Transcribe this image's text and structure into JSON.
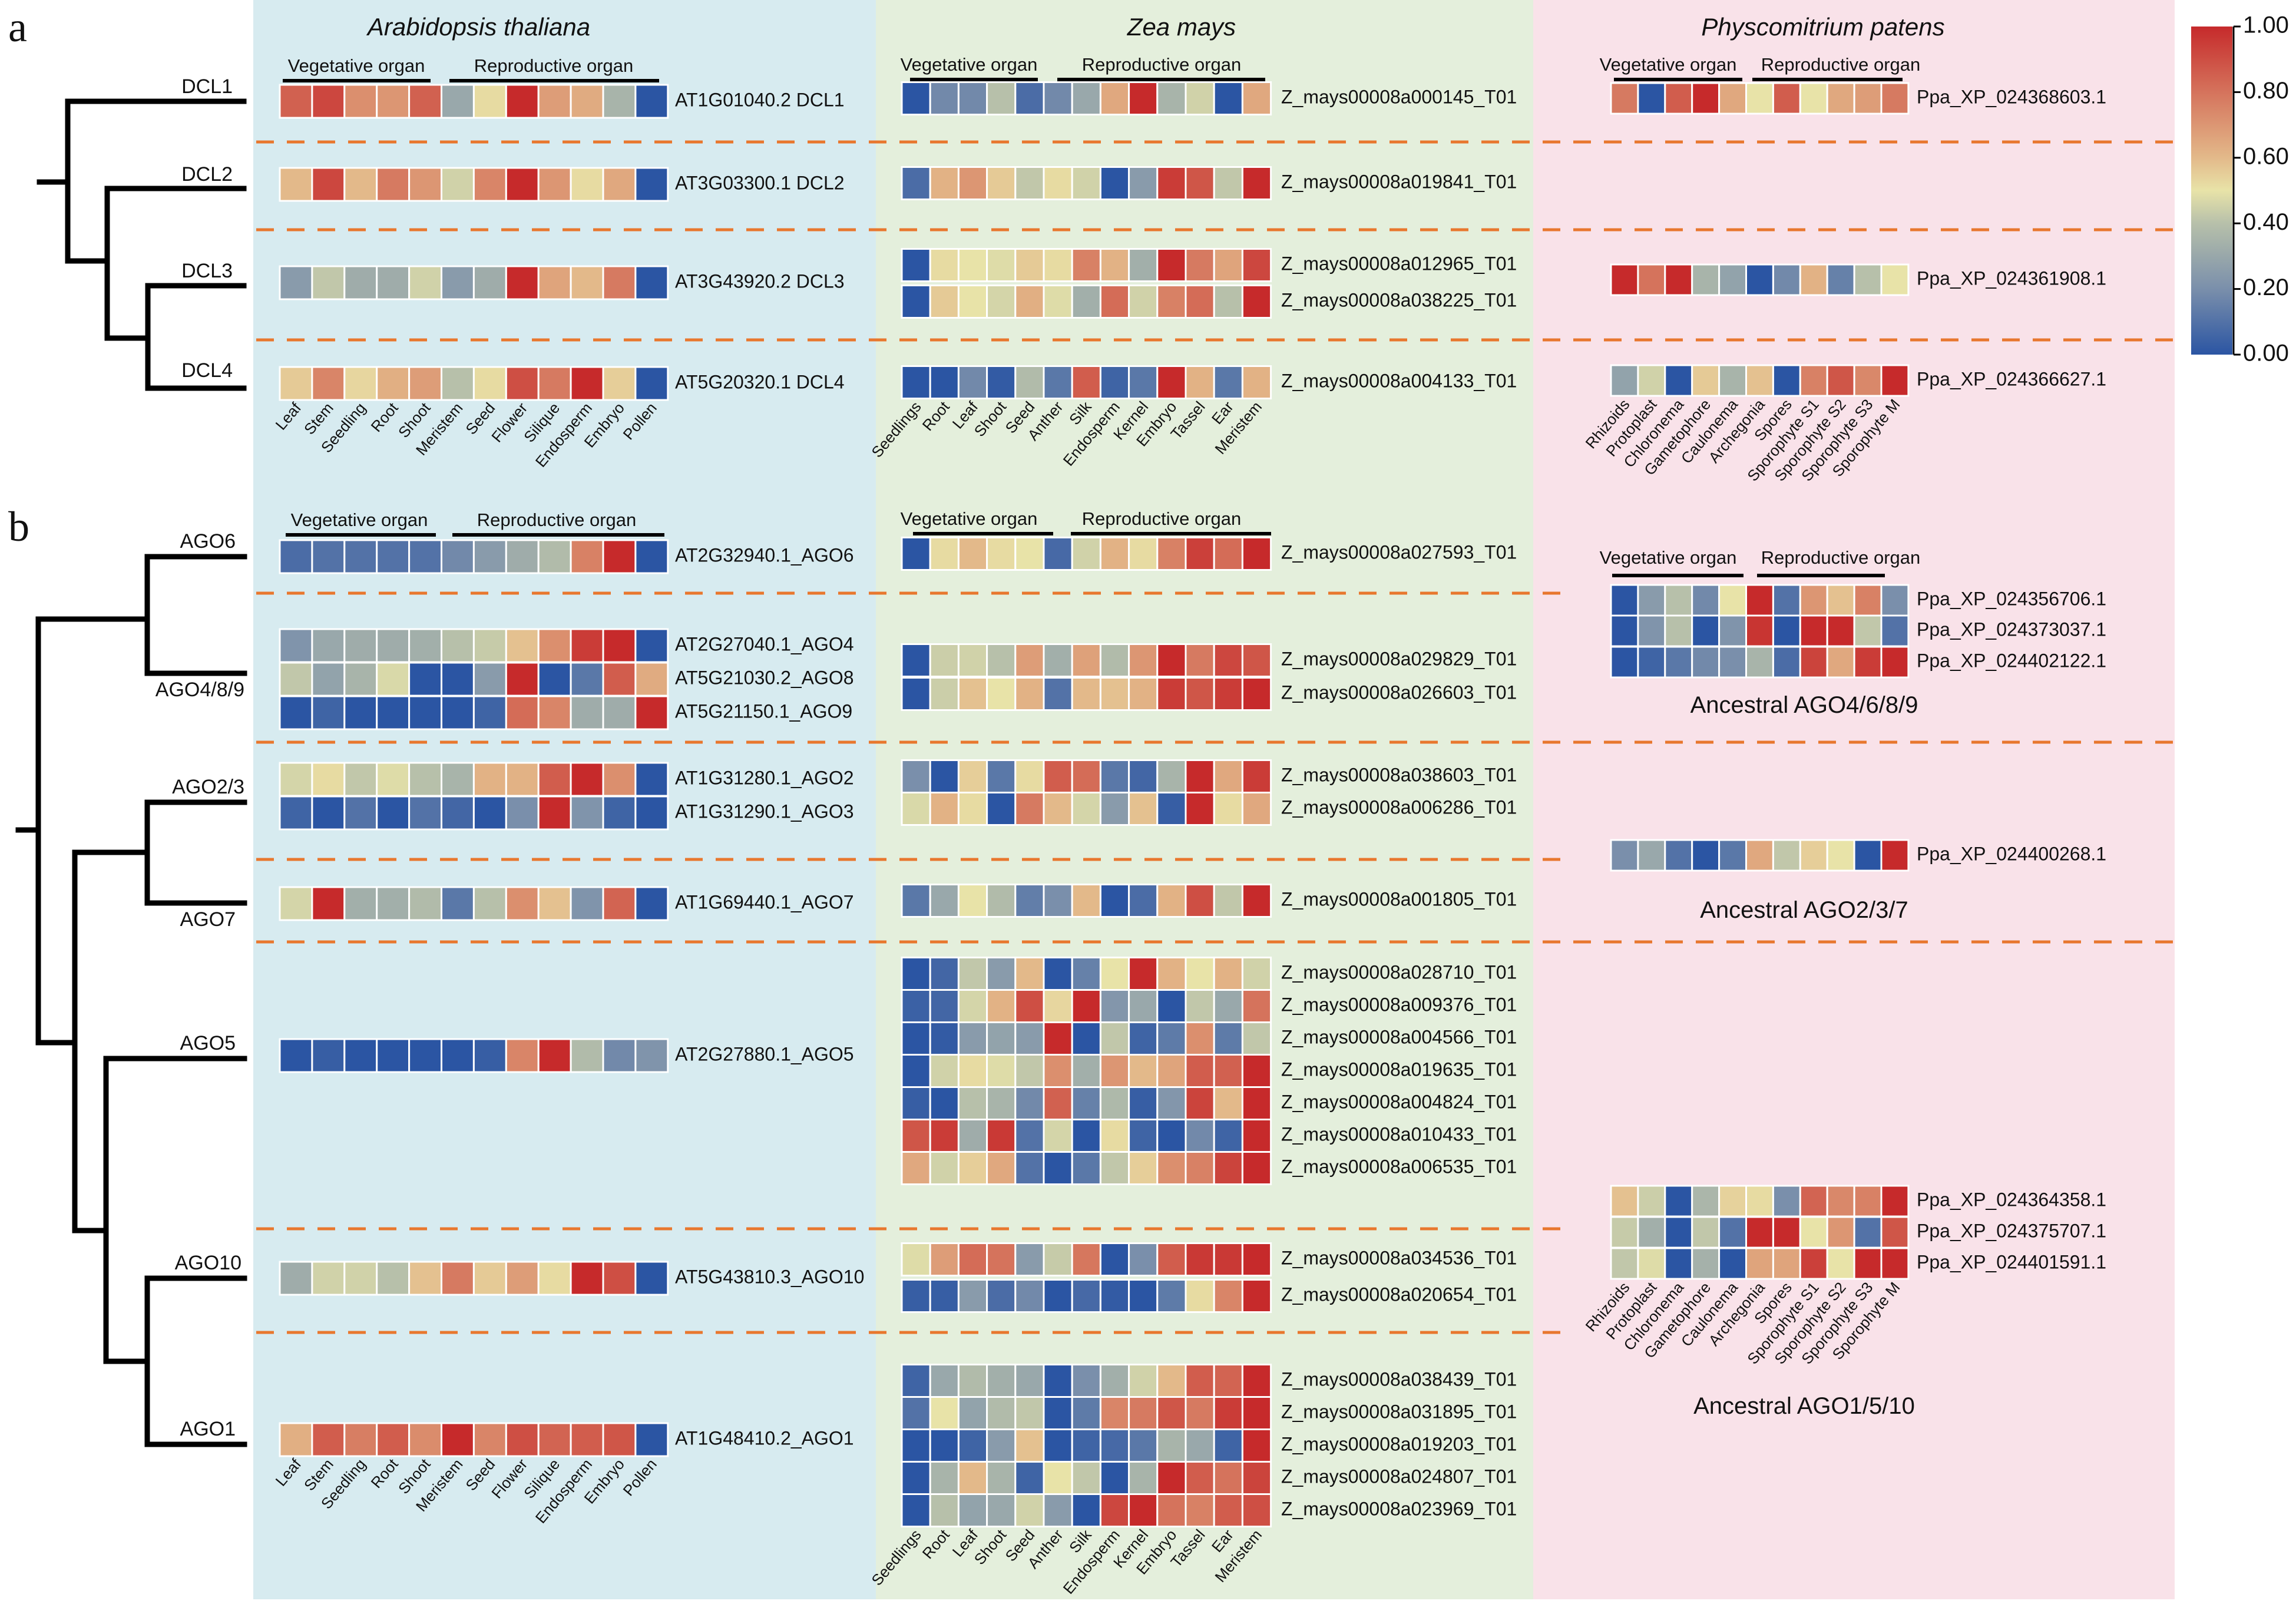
{
  "panels": {
    "a": "a",
    "b": "b"
  },
  "species": {
    "arabidopsis": "Arabidopsis thaliana",
    "zea": "Zea mays",
    "physcomitrium": "Physcomitrium patens"
  },
  "organ_groups": {
    "vegetative": "Vegetative organ",
    "reproductive": "Reproductive organ"
  },
  "tree_a": {
    "leaves": [
      "DCL1",
      "DCL2",
      "DCL3",
      "DCL4"
    ]
  },
  "tree_b": {
    "leaves": [
      "AGO6",
      "AGO4/8/9",
      "AGO2/3",
      "AGO7",
      "AGO5",
      "AGO10",
      "AGO1"
    ]
  },
  "ancestral_labels": [
    "Ancestral AGO4/6/8/9",
    "Ancestral AGO2/3/7",
    "Ancestral AGO1/5/10"
  ],
  "chart_data": {
    "type": "heatmap",
    "color_scale": {
      "min": 0,
      "max": 1,
      "tick_labels": [
        "1.00",
        "0.80",
        "0.60",
        "0.40",
        "0.20",
        "0.00"
      ],
      "stops": [
        [
          0,
          "#2b55a3"
        ],
        [
          0.2,
          "#7a8fab"
        ],
        [
          0.4,
          "#b7c0aa"
        ],
        [
          0.5,
          "#e8e3a8"
        ],
        [
          0.6,
          "#e3b98a"
        ],
        [
          0.8,
          "#d5735c"
        ],
        [
          1,
          "#c62a2b"
        ]
      ]
    },
    "columns": {
      "arabidopsis": [
        "Leaf",
        "Stem",
        "Seedling",
        "Root",
        "Shoot",
        "Meristem",
        "Seed",
        "Flower",
        "Silique",
        "Endosperm",
        "Embryo",
        "Pollen"
      ],
      "zea": [
        "Seedlings",
        "Root",
        "Leaf",
        "Shoot",
        "Seed",
        "Anther",
        "Silk",
        "Endosperm",
        "Kernel",
        "Embryo",
        "Tassel",
        "Ear",
        "Meristem"
      ],
      "physcomitrium": [
        "Rhizoids",
        "Protoplast",
        "Chloronema",
        "Gametophore",
        "Caulonema",
        "Archegonia",
        "Spores",
        "Sporophyte S1",
        "Sporophyte S2",
        "Sporophyte S3",
        "Sporophyte M"
      ]
    },
    "arabidopsis": [
      {
        "gene": "AT1G01040.2 DCL1",
        "values": [
          0.85,
          0.92,
          0.72,
          0.7,
          0.85,
          0.3,
          0.52,
          1,
          0.68,
          0.64,
          0.35,
          0
        ]
      },
      {
        "gene": "AT3G03300.1 DCL2",
        "values": [
          0.6,
          0.92,
          0.6,
          0.78,
          0.7,
          0.45,
          0.75,
          1,
          0.7,
          0.52,
          0.65,
          0
        ]
      },
      {
        "gene": "AT3G43920.2 DCL3",
        "values": [
          0.25,
          0.42,
          0.32,
          0.32,
          0.45,
          0.25,
          0.32,
          1,
          0.66,
          0.6,
          0.78,
          0
        ]
      },
      {
        "gene": "AT5G20320.1 DCL4",
        "values": [
          0.56,
          0.75,
          0.53,
          0.63,
          0.68,
          0.4,
          0.52,
          0.9,
          0.78,
          1,
          0.55,
          0
        ]
      },
      {
        "gene": "AT2G32940.1_AGO6",
        "values": [
          0.08,
          0.1,
          0.1,
          0.1,
          0.1,
          0.18,
          0.25,
          0.32,
          0.38,
          0.76,
          1,
          0
        ]
      },
      {
        "gene": "AT2G27040.1_AGO4",
        "values": [
          0.22,
          0.3,
          0.32,
          0.32,
          0.33,
          0.4,
          0.43,
          0.58,
          0.72,
          0.95,
          1,
          0
        ]
      },
      {
        "gene": "AT5G21030.2_AGO8",
        "values": [
          0.42,
          0.28,
          0.35,
          0.47,
          0,
          0,
          0.25,
          1,
          0,
          0.12,
          0.86,
          0.64
        ]
      },
      {
        "gene": "AT5G21150.1_AGO9",
        "values": [
          0,
          0.05,
          0,
          0,
          0,
          0,
          0.05,
          0.82,
          0.75,
          0.32,
          0.32,
          1
        ]
      },
      {
        "gene": "AT1G31280.1_AGO2",
        "values": [
          0.46,
          0.52,
          0.42,
          0.48,
          0.4,
          0.35,
          0.62,
          0.62,
          0.86,
          1,
          0.72,
          0
        ]
      },
      {
        "gene": "AT1G31290.1_AGO3",
        "values": [
          0.05,
          0,
          0.1,
          0,
          0.1,
          0.06,
          0,
          0.2,
          1,
          0.22,
          0.05,
          0
        ]
      },
      {
        "gene": "AT1G69440.1_AGO7",
        "values": [
          0.46,
          1,
          0.33,
          0.33,
          0.38,
          0.12,
          0.4,
          0.72,
          0.58,
          0.22,
          0.84,
          0
        ]
      },
      {
        "gene": "AT2G27880.1_AGO5",
        "values": [
          0,
          0.03,
          0,
          0,
          0,
          0,
          0.03,
          0.75,
          1,
          0.38,
          0.18,
          0.22
        ]
      },
      {
        "gene": "AT5G43810.3_AGO10",
        "values": [
          0.32,
          0.45,
          0.45,
          0.4,
          0.58,
          0.78,
          0.56,
          0.68,
          0.52,
          1,
          0.9,
          0
        ]
      },
      {
        "gene": "AT1G48410.2_AGO1",
        "values": [
          0.63,
          0.86,
          0.77,
          0.86,
          0.73,
          1,
          0.75,
          0.9,
          0.84,
          0.86,
          0.88,
          0
        ]
      }
    ],
    "zea": [
      {
        "gene": "Z_mays00008a000145_T01",
        "values": [
          0,
          0.18,
          0.18,
          0.4,
          0.08,
          0.18,
          0.3,
          0.65,
          1,
          0.35,
          0.45,
          0,
          0.65
        ]
      },
      {
        "gene": "Z_mays00008a019841_T01",
        "values": [
          0.08,
          0.62,
          0.7,
          0.56,
          0.42,
          0.52,
          0.45,
          0,
          0.25,
          0.95,
          0.88,
          0.42,
          1
        ]
      },
      {
        "gene": "Z_mays00008a012965_T01",
        "values": [
          0,
          0.52,
          0.5,
          0.48,
          0.56,
          0.52,
          0.76,
          0.62,
          0.33,
          1,
          0.78,
          0.66,
          0.92
        ]
      },
      {
        "gene": "Z_mays00008a038225_T01",
        "values": [
          0,
          0.56,
          0.5,
          0.46,
          0.63,
          0.48,
          0.33,
          0.82,
          0.45,
          0.76,
          0.82,
          0.4,
          1
        ]
      },
      {
        "gene": "Z_mays00008a004133_T01",
        "values": [
          0,
          0,
          0.18,
          0.02,
          0.38,
          0.12,
          0.86,
          0.05,
          0.12,
          1,
          0.62,
          0.12,
          0.62
        ]
      },
      {
        "gene": "Z_mays00008a027593_T01",
        "values": [
          0,
          0.52,
          0.6,
          0.52,
          0.5,
          0.07,
          0.45,
          0.62,
          0.52,
          0.76,
          0.94,
          0.82,
          1
        ]
      },
      {
        "gene": "Z_mays00008a029829_T01",
        "values": [
          0,
          0.44,
          0.45,
          0.4,
          0.68,
          0.33,
          0.67,
          0.38,
          0.7,
          1,
          0.78,
          0.92,
          0.88
        ]
      },
      {
        "gene": "Z_mays00008a026603_T01",
        "values": [
          0,
          0.44,
          0.58,
          0.5,
          0.62,
          0.1,
          0.6,
          0.58,
          0.62,
          0.95,
          0.88,
          0.95,
          1
        ]
      },
      {
        "gene": "Z_mays00008a038603_T01",
        "values": [
          0.2,
          0,
          0.55,
          0.12,
          0.52,
          0.86,
          0.82,
          0.12,
          0.06,
          0.35,
          1,
          0.65,
          0.95
        ]
      },
      {
        "gene": "Z_mays00008a006286_T01",
        "values": [
          0.47,
          0.62,
          0.52,
          0,
          0.78,
          0.6,
          0.46,
          0.25,
          0.58,
          0.03,
          1,
          0.52,
          0.65
        ]
      },
      {
        "gene": "Z_mays00008a001805_T01",
        "values": [
          0.12,
          0.3,
          0.5,
          0.38,
          0.14,
          0.2,
          0.6,
          0,
          0.08,
          0.62,
          0.9,
          0.42,
          1
        ]
      },
      {
        "gene": "Z_mays00008a028710_T01",
        "values": [
          0,
          0.06,
          0.42,
          0.25,
          0.6,
          0,
          0.15,
          0.5,
          1,
          0.62,
          0.5,
          0.62,
          0.45
        ]
      },
      {
        "gene": "Z_mays00008a009376_T01",
        "values": [
          0.04,
          0.06,
          0.46,
          0.62,
          0.9,
          0.53,
          1,
          0.23,
          0.3,
          0,
          0.42,
          0.3,
          0.8
        ]
      },
      {
        "gene": "Z_mays00008a004566_T01",
        "values": [
          0,
          0.02,
          0.25,
          0.28,
          0.25,
          1,
          0,
          0.42,
          0.05,
          0.13,
          0.72,
          0.13,
          0.42
        ]
      },
      {
        "gene": "Z_mays00008a019635_T01",
        "values": [
          0,
          0.45,
          0.52,
          0.48,
          0.42,
          0.72,
          0.33,
          0.7,
          0.6,
          0.66,
          0.86,
          0.85,
          1
        ]
      },
      {
        "gene": "Z_mays00008a004824_T01",
        "values": [
          0.03,
          0,
          0.4,
          0.35,
          0.18,
          0.85,
          0.15,
          0.37,
          0.03,
          0.23,
          0.93,
          0.6,
          1
        ]
      },
      {
        "gene": "Z_mays00008a010433_T01",
        "values": [
          0.88,
          0.95,
          0.32,
          0.96,
          0.1,
          0.46,
          0,
          0.52,
          0.05,
          0,
          0.18,
          0.05,
          1
        ]
      },
      {
        "gene": "Z_mays00008a006535_T01",
        "values": [
          0.65,
          0.45,
          0.55,
          0.65,
          0.1,
          0,
          0.12,
          0.42,
          0.55,
          0.72,
          0.76,
          0.93,
          1
        ]
      },
      {
        "gene": "Z_mays00008a034536_T01",
        "values": [
          0.48,
          0.68,
          0.82,
          0.8,
          0.25,
          0.43,
          0.79,
          0,
          0.2,
          0.86,
          0.96,
          0.96,
          1
        ]
      },
      {
        "gene": "Z_mays00008a020654_T01",
        "values": [
          0.03,
          0.03,
          0.25,
          0.08,
          0.18,
          0,
          0.07,
          0.02,
          0,
          0.13,
          0.52,
          0.75,
          1
        ]
      },
      {
        "gene": "Z_mays00008a038439_T01",
        "values": [
          0.05,
          0.3,
          0.38,
          0.33,
          0.3,
          0,
          0.2,
          0.33,
          0.45,
          0.6,
          0.86,
          0.84,
          1
        ]
      },
      {
        "gene": "Z_mays00008a031895_T01",
        "values": [
          0.1,
          0.5,
          0.28,
          0.38,
          0.42,
          0,
          0.13,
          0.75,
          0.78,
          0.88,
          0.78,
          0.95,
          1
        ]
      },
      {
        "gene": "Z_mays00008a019203_T01",
        "values": [
          0,
          0,
          0.05,
          0.25,
          0.58,
          0,
          0.05,
          0.07,
          0.12,
          0.35,
          0.3,
          0.05,
          1
        ]
      },
      {
        "gene": "Z_mays00008a024807_T01",
        "values": [
          0,
          0.35,
          0.6,
          0.35,
          0.05,
          0.5,
          0.42,
          0,
          0.35,
          1,
          0.86,
          0.8,
          0.93
        ]
      },
      {
        "gene": "Z_mays00008a023969_T01",
        "values": [
          0,
          0.4,
          0.28,
          0.3,
          0.45,
          0.25,
          0,
          0.92,
          1,
          0.8,
          0.76,
          0.86,
          0.9
        ]
      }
    ],
    "physcomitrium": [
      {
        "gene": "Ppa_XP_024368603.1",
        "values": [
          0.78,
          0,
          0.86,
          1,
          0.65,
          0.5,
          0.86,
          0.5,
          0.65,
          0.68,
          0.78
        ]
      },
      {
        "gene": "Ppa_XP_024361908.1",
        "values": [
          1,
          0.8,
          1,
          0.35,
          0.28,
          0,
          0.18,
          0.62,
          0.15,
          0.4,
          0.5
        ]
      },
      {
        "gene": "Ppa_XP_024366627.1",
        "values": [
          0.28,
          0.45,
          0,
          0.56,
          0.35,
          0.58,
          0,
          0.76,
          0.88,
          0.74,
          1
        ]
      },
      {
        "gene": "Ppa_XP_024356706.1",
        "values": [
          0,
          0.25,
          0.4,
          0.18,
          0.5,
          1,
          0.1,
          0.7,
          0.58,
          0.76,
          0.2
        ]
      },
      {
        "gene": "Ppa_XP_024373037.1",
        "values": [
          0,
          0.22,
          0.4,
          0,
          0.22,
          0.97,
          0,
          1,
          1,
          0.42,
          0.1
        ]
      },
      {
        "gene": "Ppa_XP_024402122.1",
        "values": [
          0,
          0.05,
          0.12,
          0.18,
          0.2,
          0.35,
          0.08,
          0.93,
          0.65,
          0.95,
          1
        ]
      },
      {
        "gene": "Ppa_XP_024400268.1",
        "values": [
          0.2,
          0.3,
          0.1,
          0,
          0.12,
          0.65,
          0.42,
          0.55,
          0.5,
          0,
          1
        ]
      },
      {
        "gene": "Ppa_XP_024364358.1",
        "values": [
          0.58,
          0.44,
          0,
          0.36,
          0.54,
          0.52,
          0.2,
          0.84,
          0.74,
          0.76,
          1
        ]
      },
      {
        "gene": "Ppa_XP_024375707.1",
        "values": [
          0.43,
          0.33,
          0,
          0.42,
          0.1,
          1,
          1,
          0.5,
          0.7,
          0.1,
          0.88
        ]
      },
      {
        "gene": "Ppa_XP_024401591.1",
        "values": [
          0.42,
          0.48,
          0,
          0.34,
          0,
          0.66,
          0.66,
          0.94,
          0.5,
          1,
          1
        ]
      }
    ]
  }
}
